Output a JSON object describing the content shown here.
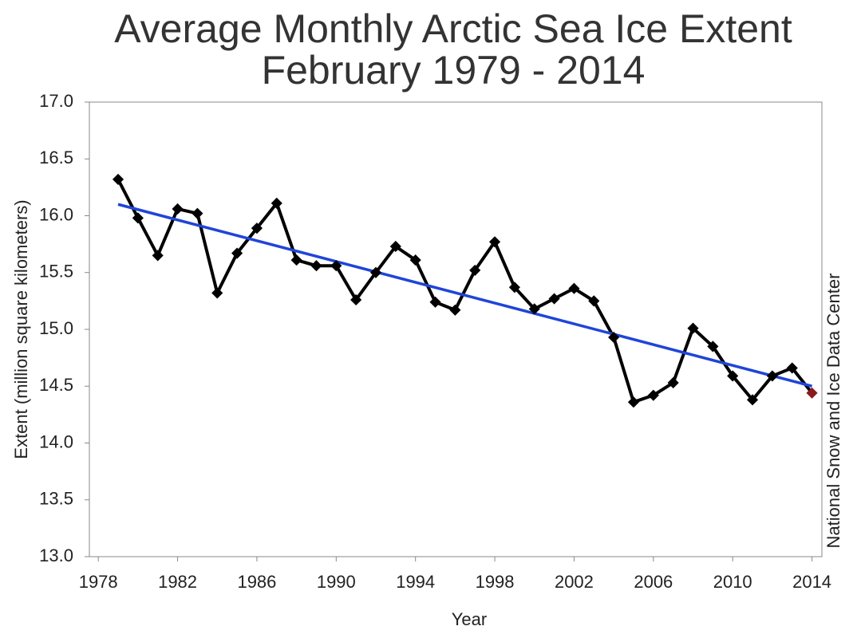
{
  "chart_data": {
    "type": "line",
    "title": "Average Monthly Arctic Sea Ice Extent",
    "subtitle": "February 1979 - 2014",
    "xlabel": "Year",
    "ylabel": "Extent (million square kilometers)",
    "source": "National Snow and Ice Data Center",
    "x": [
      1979,
      1980,
      1981,
      1982,
      1983,
      1984,
      1985,
      1986,
      1987,
      1988,
      1989,
      1990,
      1991,
      1992,
      1993,
      1994,
      1995,
      1996,
      1997,
      1998,
      1999,
      2000,
      2001,
      2002,
      2003,
      2004,
      2005,
      2006,
      2007,
      2008,
      2009,
      2010,
      2011,
      2012,
      2013,
      2014
    ],
    "series": [
      {
        "color": "#000000",
        "last_point_color": "#8b1a1a",
        "values": [
          16.32,
          15.98,
          15.65,
          16.06,
          16.02,
          15.32,
          15.67,
          15.89,
          16.11,
          15.61,
          15.56,
          15.56,
          15.26,
          15.5,
          15.73,
          15.61,
          15.24,
          15.17,
          15.52,
          15.77,
          15.37,
          15.18,
          15.27,
          15.36,
          15.25,
          14.93,
          14.36,
          14.42,
          14.53,
          15.01,
          14.85,
          14.59,
          14.38,
          14.59,
          14.66,
          14.44
        ]
      },
      {
        "color": "#1f45d8",
        "x": [
          1979,
          2014
        ],
        "values": [
          16.1,
          14.5
        ]
      }
    ],
    "xlim": [
      1977.55,
      2014.5
    ],
    "ylim": [
      13.0,
      17.0
    ],
    "xticks": [
      1978,
      1982,
      1986,
      1990,
      1994,
      1998,
      2002,
      2006,
      2010,
      2014
    ],
    "yticks": [
      {
        "value": 13,
        "label": "13.0"
      },
      13.5,
      {
        "value": 14,
        "label": "14.0"
      },
      14.5,
      {
        "value": 15,
        "label": "15.0"
      },
      15.5,
      {
        "value": 16,
        "label": "16.0"
      },
      16.5,
      {
        "value": 17,
        "label": "17.0"
      }
    ]
  }
}
